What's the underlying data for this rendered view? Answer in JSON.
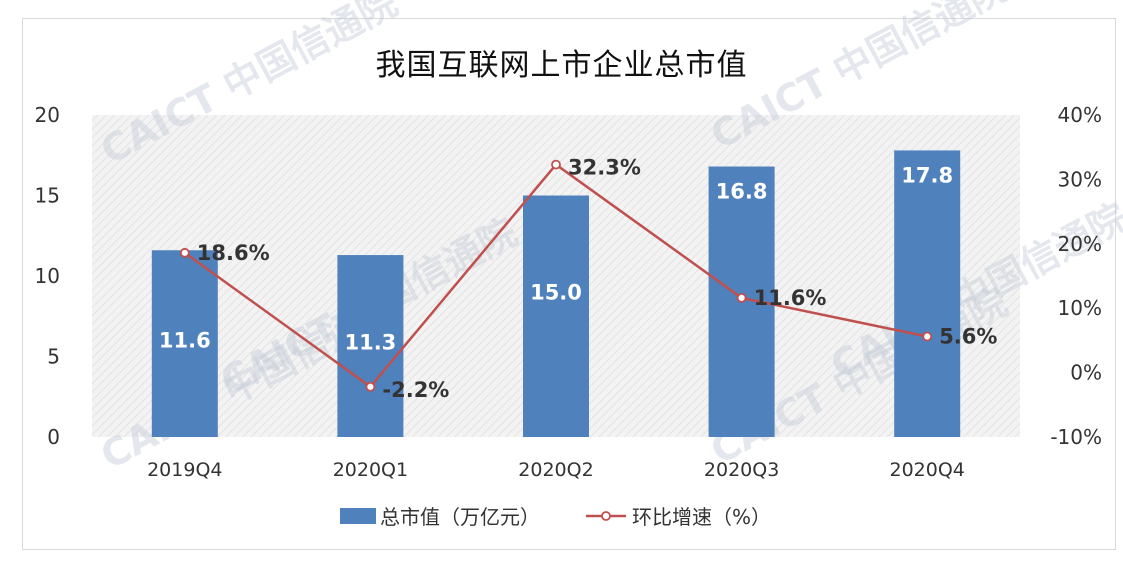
{
  "chart_data": {
    "type": "bar",
    "title": "我国互联网上市企业总市值",
    "categories": [
      "2019Q4",
      "2020Q1",
      "2020Q2",
      "2020Q3",
      "2020Q4"
    ],
    "series": [
      {
        "name": "总市值（万亿元）",
        "type": "bar",
        "axis": "left",
        "values": [
          11.6,
          11.3,
          15.0,
          16.8,
          17.8
        ],
        "labels": [
          "11.6",
          "11.3",
          "15.0",
          "16.8",
          "17.8"
        ],
        "color": "#4f81bd"
      },
      {
        "name": "环比增速（%）",
        "type": "line",
        "axis": "right",
        "values": [
          18.6,
          -2.2,
          32.3,
          11.6,
          5.6
        ],
        "labels": [
          "18.6%",
          "-2.2%",
          "32.3%",
          "11.6%",
          "5.6%"
        ],
        "color": "#c0504d"
      }
    ],
    "y_left": {
      "min": 0,
      "max": 20,
      "ticks": [
        "0",
        "5",
        "10",
        "15",
        "20"
      ]
    },
    "y_right": {
      "min": -10,
      "max": 40,
      "ticks": [
        "-10%",
        "0%",
        "10%",
        "20%",
        "30%",
        "40%"
      ]
    },
    "grid": false,
    "legend": "bottom"
  },
  "watermark": {
    "text": "CAICT 中国信通院"
  }
}
